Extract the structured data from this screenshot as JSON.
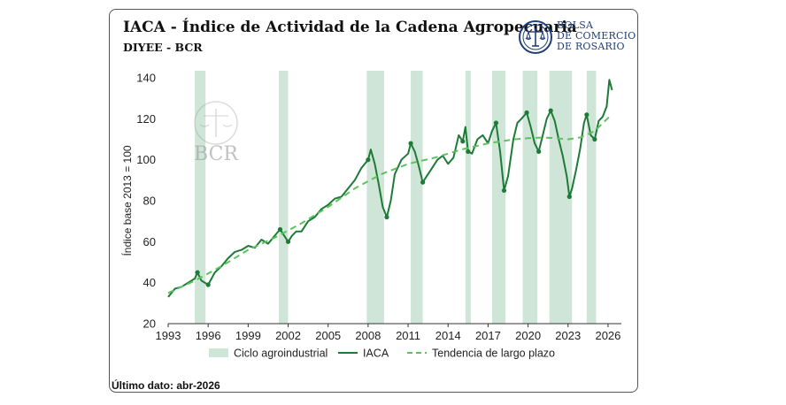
{
  "header": {
    "title": "IACA - Índice de Actividad de la Cadena Agropecuaria",
    "subtitle": "DIYEE - BCR",
    "logo_line1": "BOLSA",
    "logo_line2": "DE COMERCIO",
    "logo_line3": "DE ROSARIO",
    "watermark": "BCR"
  },
  "footer": {
    "last_data": "Último dato: abr-2026"
  },
  "colors": {
    "iaca": "#1e7a37",
    "trend": "#5cc25c",
    "cycle": "#cfe5d7",
    "logo": "#1f3f78"
  },
  "chart_data": {
    "type": "line",
    "ylabel": "Índice base 2013 = 100",
    "xlabel": "",
    "xlim": [
      1993,
      2027
    ],
    "ylim": [
      20,
      140
    ],
    "yticks": [
      20,
      40,
      60,
      80,
      100,
      120,
      140
    ],
    "xticks": [
      1993,
      1996,
      1999,
      2002,
      2005,
      2008,
      2011,
      2014,
      2017,
      2020,
      2023,
      2026
    ],
    "legend_position": "bottom",
    "grid": false,
    "cycles": [
      [
        1995.0,
        1995.8
      ],
      [
        2001.3,
        2002.0
      ],
      [
        2007.9,
        2009.2
      ],
      [
        2011.2,
        2012.1
      ],
      [
        2015.3,
        2015.7
      ],
      [
        2017.3,
        2018.3
      ],
      [
        2019.6,
        2020.7
      ],
      [
        2021.6,
        2023.3
      ],
      [
        2024.4,
        2025.1
      ]
    ],
    "series": [
      {
        "name": "IACA",
        "style": "solid",
        "x": [
          1993.0,
          1993.5,
          1994.0,
          1994.5,
          1995.0,
          1995.2,
          1995.5,
          1996.0,
          1996.5,
          1997.0,
          1997.5,
          1998.0,
          1998.5,
          1999.0,
          1999.5,
          2000.0,
          2000.5,
          2001.0,
          2001.4,
          2001.8,
          2002.0,
          2002.3,
          2002.6,
          2003.0,
          2003.5,
          2004.0,
          2004.5,
          2005.0,
          2005.5,
          2006.0,
          2006.5,
          2007.0,
          2007.5,
          2008.0,
          2008.2,
          2008.5,
          2008.8,
          2009.1,
          2009.4,
          2009.7,
          2010.0,
          2010.5,
          2011.0,
          2011.2,
          2011.5,
          2011.8,
          2012.1,
          2012.4,
          2012.8,
          2013.2,
          2013.6,
          2014.0,
          2014.4,
          2014.8,
          2015.1,
          2015.3,
          2015.5,
          2015.8,
          2016.2,
          2016.6,
          2017.0,
          2017.3,
          2017.6,
          2017.9,
          2018.2,
          2018.5,
          2018.9,
          2019.2,
          2019.5,
          2019.9,
          2020.2,
          2020.5,
          2020.8,
          2021.1,
          2021.4,
          2021.7,
          2022.0,
          2022.3,
          2022.6,
          2022.9,
          2023.1,
          2023.3,
          2023.6,
          2023.9,
          2024.2,
          2024.4,
          2024.7,
          2025.0,
          2025.3,
          2025.6,
          2025.9,
          2026.1,
          2026.3
        ],
        "values": [
          33,
          37,
          38,
          40,
          42,
          45,
          41,
          39,
          45,
          48,
          52,
          55,
          56,
          58,
          57,
          61,
          59,
          63,
          66,
          62,
          60,
          63,
          65,
          65,
          70,
          72,
          76,
          78,
          81,
          82,
          86,
          90,
          96,
          100,
          105,
          98,
          88,
          77,
          72,
          80,
          93,
          100,
          103,
          108,
          104,
          97,
          89,
          92,
          96,
          100,
          102,
          98,
          101,
          112,
          109,
          116,
          104,
          103,
          110,
          112,
          108,
          114,
          118,
          104,
          85,
          92,
          110,
          118,
          120,
          123,
          116,
          108,
          104,
          112,
          120,
          124,
          119,
          110,
          102,
          92,
          82,
          86,
          95,
          105,
          118,
          122,
          112,
          110,
          119,
          121,
          126,
          139,
          134
        ]
      },
      {
        "name": "Tendencia de largo plazo",
        "style": "dashed",
        "x": [
          1993,
          1995,
          1997,
          1999,
          2001,
          2003,
          2005,
          2007,
          2009,
          2011,
          2013,
          2015,
          2017,
          2019,
          2020,
          2021,
          2022,
          2023,
          2024,
          2025,
          2026.1
        ],
        "values": [
          35,
          41,
          48,
          56,
          62,
          69,
          77,
          86,
          93,
          98,
          101,
          105,
          108,
          110,
          110.5,
          110.8,
          110.6,
          110,
          111,
          114,
          121
        ]
      }
    ],
    "legend": [
      "Ciclo agroindustrial",
      "IACA",
      "Tendencia de largo plazo"
    ]
  }
}
